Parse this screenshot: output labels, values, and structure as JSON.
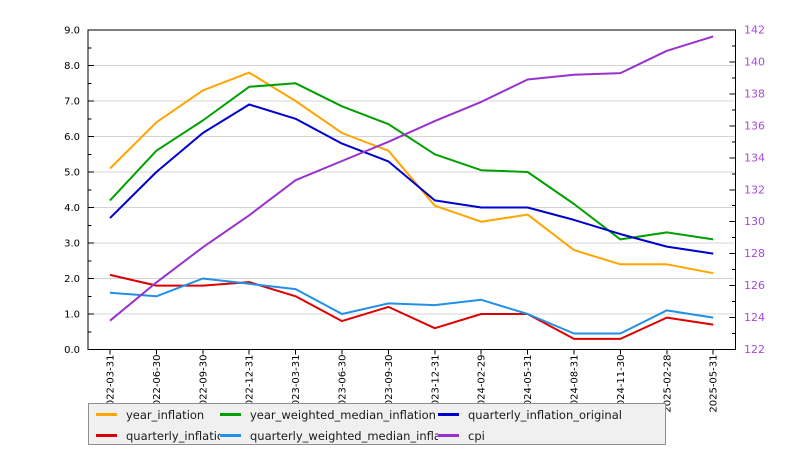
{
  "chart_data": {
    "type": "line",
    "categories": [
      "2022-03-31",
      "2022-06-30",
      "2022-09-30",
      "2022-12-31",
      "2023-03-31",
      "2023-06-30",
      "2023-09-30",
      "2023-12-31",
      "2024-02-29",
      "2024-05-31",
      "2024-08-31",
      "2024-11-30",
      "2025-02-28",
      "2025-05-31"
    ],
    "series": [
      {
        "name": "year_inflation",
        "color": "#FFA500",
        "axis": "left",
        "values": [
          5.1,
          6.4,
          7.3,
          7.8,
          7.0,
          6.1,
          5.6,
          4.05,
          3.6,
          3.8,
          2.8,
          2.4,
          2.4,
          2.15
        ]
      },
      {
        "name": "year_weighted_median_inflation",
        "color": "#00A000",
        "axis": "left",
        "values": [
          4.2,
          5.6,
          6.45,
          7.4,
          7.5,
          6.85,
          6.35,
          5.5,
          5.05,
          5.0,
          4.1,
          3.1,
          3.3,
          3.1
        ]
      },
      {
        "name": "quarterly_inflation_original",
        "color": "#0000CC",
        "axis": "left",
        "values": [
          3.7,
          5.0,
          6.1,
          6.9,
          6.5,
          5.8,
          5.3,
          4.2,
          4.0,
          4.0,
          3.65,
          3.25,
          2.9,
          2.7
        ]
      },
      {
        "name": "quarterly_inflation",
        "color": "#DD0000",
        "axis": "left",
        "values": [
          2.1,
          1.8,
          1.8,
          1.9,
          1.5,
          0.8,
          1.2,
          0.6,
          1.0,
          1.0,
          0.3,
          0.3,
          0.9,
          0.7
        ]
      },
      {
        "name": "quarterly_weighted_median_inflation",
        "color": "#2090E8",
        "axis": "left",
        "values": [
          1.6,
          1.5,
          2.0,
          1.85,
          1.7,
          1.0,
          1.3,
          1.25,
          1.4,
          1.0,
          0.45,
          0.45,
          1.1,
          0.9
        ]
      },
      {
        "name": "cpi",
        "color": "#9932CC",
        "axis": "right",
        "values": [
          123.8,
          126.2,
          128.4,
          130.4,
          132.6,
          133.8,
          135.0,
          136.3,
          137.5,
          138.9,
          139.2,
          139.3,
          140.7,
          141.6
        ]
      }
    ],
    "left_axis": {
      "min": 0,
      "max": 9,
      "tick_step": 1,
      "minor_step": 0.5,
      "labels": [
        "0.0",
        "1.0",
        "2.0",
        "3.0",
        "4.0",
        "5.0",
        "6.0",
        "7.0",
        "8.0",
        "9.0"
      ],
      "color": "#000000"
    },
    "right_axis": {
      "min": 122,
      "max": 142,
      "tick_step": 2,
      "minor_step": 1,
      "labels": [
        "122",
        "124",
        "126",
        "128",
        "130",
        "132",
        "134",
        "136",
        "138",
        "140",
        "142"
      ],
      "color": "#A44BDC"
    },
    "grid": "horizontal",
    "legend_position": "bottom-left",
    "style": {
      "grid_color": "#d4d4d4",
      "frame_color": "#000000",
      "background": "#ffffff",
      "tick_label_color": "#000000"
    }
  },
  "legend": {
    "items": [
      {
        "label": "year_inflation",
        "color": "#FFA500"
      },
      {
        "label": "year_weighted_median_inflation",
        "color": "#00A000"
      },
      {
        "label": "quarterly_inflation_original",
        "color": "#0000CC"
      },
      {
        "label": "quarterly_inflation",
        "color": "#DD0000"
      },
      {
        "label": "quarterly_weighted_median_inflation",
        "color": "#2090E8"
      },
      {
        "label": "cpi",
        "color": "#9932CC"
      }
    ]
  }
}
